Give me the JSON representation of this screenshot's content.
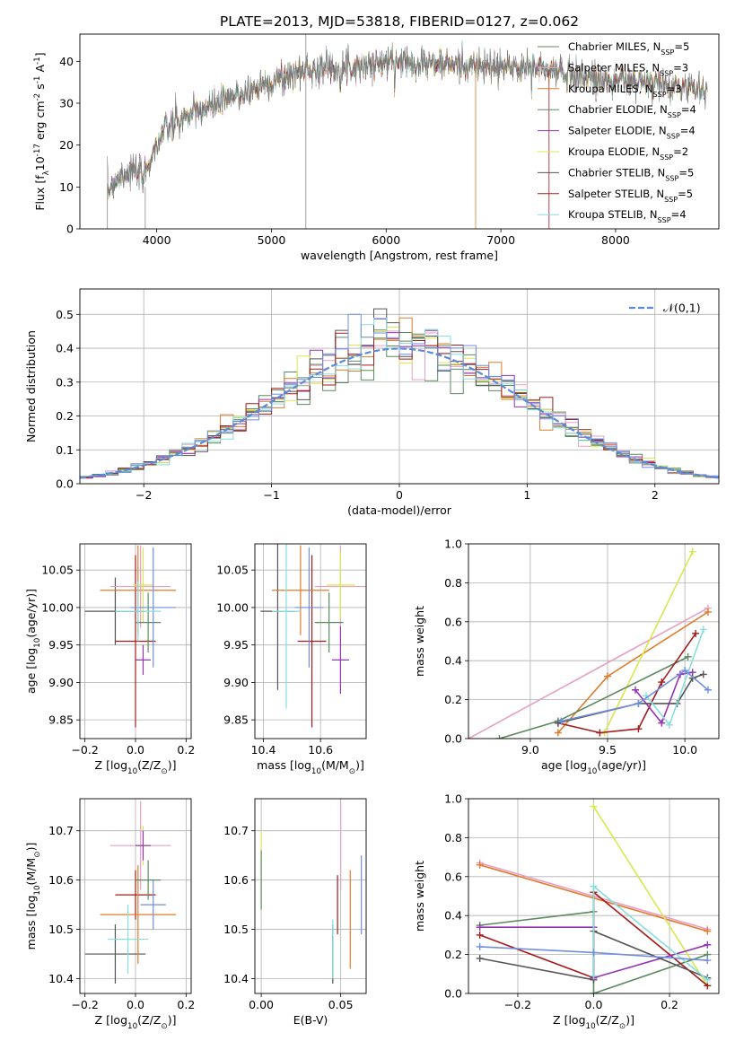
{
  "figure_title": "PLATE=2013, MJD=53818, FIBERID=0127, z=0.062",
  "model_names": [
    "Chabrier MILES, N$_{SSP}$=5",
    "Salpeter MILES, N$_{SSP}$=3",
    "Kroupa MILES, N$_{SSP}$=3",
    "Chabrier ELODIE, N$_{SSP}$=4",
    "Salpeter ELODIE, N$_{SSP}$=4",
    "Kroupa ELODIE, N$_{SSP}$=2",
    "Chabrier STELIB, N$_{SSP}$=5",
    "Salpeter STELIB, N$_{SSP}$=5",
    "Kroupa STELIB, N$_{SSP}$=4"
  ],
  "chart_data": [
    {
      "id": "spectrum",
      "type": "line",
      "title": "PLATE=2013, MJD=53818, FIBERID=0127, z=0.062",
      "xlabel": "wavelength [Angstrom, rest frame]",
      "ylabel": "Flux [f$_\\lambda$10$^{-17}$ erg cm$^{-2}$ s$^{-1}$ A$^{-1}$]",
      "xlim": [
        3330,
        8900
      ],
      "ylim": [
        0,
        46.5
      ],
      "xticks": [
        4000,
        5000,
        6000,
        7000,
        8000
      ],
      "yticks": [
        0,
        10,
        20,
        30,
        40
      ],
      "legend": "upper right",
      "grid": false,
      "continuum": {
        "x": [
          3570,
          3620,
          3700,
          3800,
          3880,
          3950,
          4000,
          4050,
          4150,
          4250,
          4350,
          4500,
          4700,
          4900,
          5100,
          5300,
          5500,
          5800,
          6100,
          6400,
          6700,
          7000,
          7300,
          7600,
          7900,
          8200,
          8500,
          8800
        ],
        "y": [
          9,
          11,
          13,
          14,
          12,
          17,
          20,
          23,
          25,
          26.5,
          28,
          29.5,
          32,
          34,
          36,
          38,
          38.5,
          39,
          40,
          39.5,
          39,
          38.5,
          38.5,
          37,
          35.5,
          35,
          34,
          33.5
        ]
      },
      "series_colors": [
        "#5c8a5f",
        "#e6a0c4",
        "#e07b2a",
        "#5c8a5f",
        "#9433b5",
        "#d9e84f",
        "#555555",
        "#a51a1a",
        "#88dddd"
      ]
    },
    {
      "id": "residuals",
      "type": "area",
      "xlabel": "(data-model)/error",
      "ylabel": "Normed distribution",
      "xlim": [
        -2.5,
        2.5
      ],
      "ylim": [
        0,
        0.575
      ],
      "xticks": [
        -2,
        -1,
        0,
        1,
        2
      ],
      "yticks": [
        0,
        0.1,
        0.2,
        0.3,
        0.4,
        0.5
      ],
      "grid": true,
      "legend": "upper right",
      "gaussian_label": "$\\mathcal{N}(0,1)$",
      "gaussian_color": "#5b8bd6",
      "hist_colors": [
        "#5c8a5f",
        "#e6a0c4",
        "#e07b2a",
        "#5c8a5f",
        "#9433b5",
        "#d9e84f",
        "#555555",
        "#a51a1a",
        "#88dddd",
        "#6f8fe0"
      ]
    },
    {
      "id": "age-vs-Z",
      "type": "scatter",
      "xlabel": "Z [log$_{10}$(Z/Z$_\\odot$)]",
      "ylabel": "age  [log$_{10}$(age/yr)]",
      "xlim": [
        -0.22,
        0.22
      ],
      "ylim": [
        9.825,
        10.085
      ],
      "xticks": [
        -0.2,
        0.0,
        0.2
      ],
      "yticks": [
        9.85,
        9.9,
        9.95,
        10.0,
        10.05
      ],
      "grid": true,
      "points": [
        {
          "x": -0.08,
          "y": 9.995,
          "xerr": 0.12,
          "yerr": 0.045,
          "color": "#555555"
        },
        {
          "x": 0.0,
          "y": 9.955,
          "xerr": 0.08,
          "yerr": 0.115,
          "color": "#a51a1a"
        },
        {
          "x": 0.01,
          "y": 10.023,
          "xerr": 0.15,
          "yerr": 0.06,
          "color": "#e07b2a"
        },
        {
          "x": 0.02,
          "y": 10.028,
          "xerr": 0.12,
          "yerr": 0.055,
          "color": "#e6a0c4"
        },
        {
          "x": 0.03,
          "y": 10.03,
          "xerr": 0.04,
          "yerr": 0.05,
          "color": "#d9e84f"
        },
        {
          "x": 0.03,
          "y": 9.93,
          "xerr": 0.03,
          "yerr": 0.02,
          "color": "#9433b5"
        },
        {
          "x": 0.05,
          "y": 9.98,
          "xerr": 0.05,
          "yerr": 0.04,
          "color": "#5c8a5f"
        },
        {
          "x": 0.07,
          "y": 10.0,
          "xerr": 0.09,
          "yerr": 0.08,
          "color": "#6f8fe0"
        },
        {
          "x": 0.01,
          "y": 9.995,
          "xerr": 0.09,
          "yerr": 0.04,
          "color": "#88dddd"
        }
      ]
    },
    {
      "id": "age-vs-mass",
      "type": "scatter",
      "xlabel": "mass [log$_{10}$(M/M$_\\odot$)]",
      "ylabel": "",
      "xlim": [
        10.37,
        10.76
      ],
      "ylim": [
        9.825,
        10.085
      ],
      "xticks": [
        10.4,
        10.6
      ],
      "yticks": [
        9.85,
        9.9,
        9.95,
        10.0,
        10.05
      ],
      "grid": true,
      "points": [
        {
          "x": 10.45,
          "y": 9.995,
          "xerr": 0.06,
          "yerr": 0.105,
          "color": "#555555"
        },
        {
          "x": 10.57,
          "y": 9.955,
          "xerr": 0.05,
          "yerr": 0.115,
          "color": "#a51a1a"
        },
        {
          "x": 10.53,
          "y": 10.023,
          "xerr": 0.1,
          "yerr": 0.06,
          "color": "#e07b2a"
        },
        {
          "x": 10.67,
          "y": 10.028,
          "xerr": 0.09,
          "yerr": 0.055,
          "color": "#e6a0c4"
        },
        {
          "x": 10.67,
          "y": 10.03,
          "xerr": 0.05,
          "yerr": 0.045,
          "color": "#d9e84f"
        },
        {
          "x": 10.67,
          "y": 9.93,
          "xerr": 0.03,
          "yerr": 0.045,
          "color": "#9433b5"
        },
        {
          "x": 10.63,
          "y": 9.98,
          "xerr": 0.05,
          "yerr": 0.04,
          "color": "#5c8a5f"
        },
        {
          "x": 10.56,
          "y": 10.0,
          "xerr": 0.05,
          "yerr": 0.08,
          "color": "#6f8fe0"
        },
        {
          "x": 10.48,
          "y": 9.995,
          "xerr": 0.05,
          "yerr": 0.13,
          "color": "#88dddd"
        }
      ]
    },
    {
      "id": "weight-vs-age",
      "type": "line",
      "xlabel": "age  [log$_{10}$(age/yr)]",
      "ylabel": "mass weight",
      "xlim": [
        8.6,
        10.22
      ],
      "ylim": [
        0,
        1.0
      ],
      "xticks": [
        9.0,
        9.5,
        10.0
      ],
      "yticks": [
        0.0,
        0.2,
        0.4,
        0.6,
        0.8,
        1.0
      ],
      "grid": true,
      "series": [
        {
          "color": "#e6a0c4",
          "x": [
            8.6,
            10.15
          ],
          "y": [
            0.0,
            0.67
          ]
        },
        {
          "color": "#e07b2a",
          "x": [
            9.18,
            9.5,
            10.15
          ],
          "y": [
            0.03,
            0.32,
            0.65
          ]
        },
        {
          "color": "#d9e84f",
          "x": [
            9.48,
            10.05
          ],
          "y": [
            0.03,
            0.96
          ]
        },
        {
          "color": "#5c8a5f",
          "x": [
            8.8,
            9.18,
            10.02
          ],
          "y": [
            0.0,
            0.09,
            0.42
          ]
        },
        {
          "color": "#a51a1a",
          "x": [
            9.18,
            9.45,
            9.7,
            9.85,
            10.07
          ],
          "y": [
            0.08,
            0.03,
            0.05,
            0.29,
            0.54
          ]
        },
        {
          "color": "#9433b5",
          "x": [
            9.68,
            9.85,
            9.97,
            10.05
          ],
          "y": [
            0.25,
            0.08,
            0.33,
            0.34
          ]
        },
        {
          "color": "#555555",
          "x": [
            9.18,
            9.7,
            9.95,
            10.05,
            10.12
          ],
          "y": [
            0.08,
            0.18,
            0.18,
            0.31,
            0.33
          ]
        },
        {
          "color": "#88dddd",
          "x": [
            9.75,
            9.9,
            10.12
          ],
          "y": [
            0.22,
            0.07,
            0.56
          ]
        },
        {
          "color": "#6f8fe0",
          "x": [
            9.2,
            9.7,
            10.0,
            10.15
          ],
          "y": [
            0.09,
            0.18,
            0.35,
            0.25
          ]
        }
      ]
    },
    {
      "id": "mass-vs-Z",
      "type": "scatter",
      "xlabel": "Z [log$_{10}$(Z/Z$_\\odot$)]",
      "ylabel": "mass [log$_{10}$(M/M$_\\odot$)]",
      "xlim": [
        -0.22,
        0.22
      ],
      "ylim": [
        10.37,
        10.765
      ],
      "xticks": [
        -0.2,
        0.0,
        0.2
      ],
      "yticks": [
        10.4,
        10.5,
        10.6,
        10.7
      ],
      "grid": true,
      "points": [
        {
          "x": -0.08,
          "y": 10.45,
          "xerr": 0.12,
          "yerr": 0.06,
          "color": "#555555"
        },
        {
          "x": 0.0,
          "y": 10.57,
          "xerr": 0.08,
          "yerr": 0.05,
          "color": "#a51a1a"
        },
        {
          "x": 0.01,
          "y": 10.53,
          "xerr": 0.15,
          "yerr": 0.1,
          "color": "#e07b2a"
        },
        {
          "x": 0.02,
          "y": 10.67,
          "xerr": 0.12,
          "yerr": 0.09,
          "color": "#e6a0c4"
        },
        {
          "x": 0.03,
          "y": 10.67,
          "xerr": 0.03,
          "yerr": 0.04,
          "color": "#d9e84f"
        },
        {
          "x": 0.03,
          "y": 10.67,
          "xerr": 0.03,
          "yerr": 0.03,
          "color": "#9433b5"
        },
        {
          "x": 0.05,
          "y": 10.6,
          "xerr": 0.05,
          "yerr": 0.04,
          "color": "#5c8a5f"
        },
        {
          "x": 0.07,
          "y": 10.55,
          "xerr": 0.05,
          "yerr": 0.05,
          "color": "#6f8fe0"
        },
        {
          "x": -0.03,
          "y": 10.48,
          "xerr": 0.08,
          "yerr": 0.07,
          "color": "#88dddd"
        }
      ]
    },
    {
      "id": "mass-vs-EBV",
      "type": "scatter",
      "xlabel": "E(B-V)",
      "ylabel": "",
      "xlim": [
        -0.004,
        0.066
      ],
      "ylim": [
        10.37,
        10.765
      ],
      "xticks": [
        0.0,
        0.05
      ],
      "yticks": [
        10.4,
        10.5,
        10.6,
        10.7
      ],
      "grid": true,
      "points": [
        {
          "x": 0.0,
          "y": 10.62,
          "xerr": 0,
          "yerr": 0.08,
          "color": "#d9e84f"
        },
        {
          "x": 0.0,
          "y": 10.6,
          "xerr": 0,
          "yerr": 0.06,
          "color": "#5c8a5f"
        },
        {
          "x": 0.045,
          "y": 10.45,
          "xerr": 0,
          "yerr": 0.06,
          "color": "#555555"
        },
        {
          "x": 0.045,
          "y": 10.46,
          "xerr": 0,
          "yerr": 0.06,
          "color": "#88dddd"
        },
        {
          "x": 0.048,
          "y": 10.55,
          "xerr": 0,
          "yerr": 0.06,
          "color": "#a51a1a"
        },
        {
          "x": 0.05,
          "y": 10.67,
          "xerr": 0,
          "yerr": 0.09,
          "color": "#e6a0c4"
        },
        {
          "x": 0.056,
          "y": 10.52,
          "xerr": 0,
          "yerr": 0.1,
          "color": "#e07b2a"
        },
        {
          "x": 0.063,
          "y": 10.57,
          "xerr": 0,
          "yerr": 0.08,
          "color": "#6f8fe0"
        }
      ]
    },
    {
      "id": "weight-vs-Z",
      "type": "line",
      "xlabel": "Z [log$_{10}$(Z/Z$_\\odot$)]",
      "ylabel": "mass weight",
      "xlim": [
        -0.33,
        0.33
      ],
      "ylim": [
        0,
        1.0
      ],
      "xticks": [
        -0.2,
        0.0,
        0.2
      ],
      "yticks": [
        0.0,
        0.2,
        0.4,
        0.6,
        0.8,
        1.0
      ],
      "grid": true,
      "series": [
        {
          "color": "#e6a0c4",
          "x": [
            -0.3,
            0.3
          ],
          "y": [
            0.67,
            0.33
          ]
        },
        {
          "color": "#e07b2a",
          "x": [
            -0.3,
            0.3
          ],
          "y": [
            0.66,
            0.32
          ]
        },
        {
          "color": "#d9e84f",
          "x": [
            0.0,
            0.3
          ],
          "y": [
            0.96,
            0.04
          ]
        },
        {
          "color": "#5c8a5f",
          "x": [
            -0.3,
            0.0,
            0.0,
            0.3
          ],
          "y": [
            0.35,
            0.42,
            0.0,
            0.2
          ]
        },
        {
          "color": "#a51a1a",
          "x": [
            -0.3,
            0.0,
            0.0,
            0.3
          ],
          "y": [
            0.3,
            0.08,
            0.52,
            0.04
          ]
        },
        {
          "color": "#9433b5",
          "x": [
            -0.3,
            0.0,
            0.0,
            0.3
          ],
          "y": [
            0.34,
            0.34,
            0.08,
            0.25
          ]
        },
        {
          "color": "#555555",
          "x": [
            -0.3,
            0.0,
            0.0,
            0.3
          ],
          "y": [
            0.18,
            0.07,
            0.32,
            0.08
          ]
        },
        {
          "color": "#88dddd",
          "x": [
            0.0,
            0.0,
            0.3
          ],
          "y": [
            0.09,
            0.55,
            0.07
          ]
        },
        {
          "color": "#6f8fe0",
          "x": [
            -0.3,
            0.0,
            0.3
          ],
          "y": [
            0.24,
            0.21,
            0.17
          ]
        }
      ]
    }
  ]
}
